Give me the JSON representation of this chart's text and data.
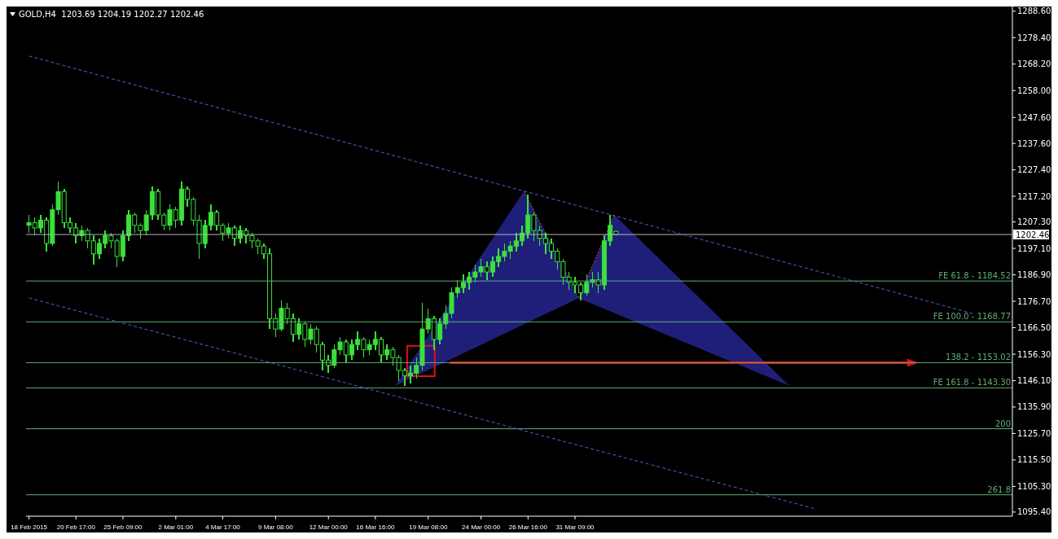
{
  "chart_data": {
    "type": "candlestick",
    "title": "GOLD,H4  1203.69 1204.19 1202.27 1202.46",
    "categories": [
      "18 Feb 2015",
      null,
      null,
      null,
      null,
      null,
      null,
      null,
      "20 Feb 17:00",
      null,
      null,
      null,
      null,
      null,
      null,
      null,
      "25 Feb 09:00",
      null,
      null,
      null,
      null,
      null,
      null,
      null,
      null,
      "2 Mar 01:00",
      null,
      null,
      null,
      null,
      null,
      null,
      null,
      "4 Mar 17:00",
      null,
      null,
      null,
      null,
      null,
      null,
      null,
      null,
      "9 Mar 08:00",
      null,
      null,
      null,
      null,
      null,
      null,
      null,
      null,
      "12 Mar 00:00",
      null,
      null,
      null,
      null,
      null,
      null,
      null,
      "16 Mar 16:00",
      null,
      null,
      null,
      null,
      null,
      null,
      null,
      null,
      "19 Mar 08:00",
      null,
      null,
      null,
      null,
      null,
      null,
      null,
      null,
      "24 Mar 00:00",
      null,
      null,
      null,
      null,
      null,
      null,
      null,
      "26 Mar 16:00",
      null,
      null,
      null,
      null,
      null,
      null,
      null,
      "31 Mar 09:00",
      null,
      null,
      null,
      null,
      null,
      null,
      null,
      null,
      null,
      null,
      null,
      null,
      null,
      null,
      null,
      null,
      null,
      null,
      null,
      null,
      null,
      null,
      null,
      null,
      null,
      null,
      null,
      null,
      null,
      null,
      null,
      null,
      null,
      null,
      null,
      null,
      null,
      null,
      null,
      null,
      null,
      null,
      null,
      null,
      null,
      null,
      null,
      null,
      null,
      null,
      null,
      null,
      null,
      null,
      null,
      null,
      null,
      null,
      null,
      null,
      null,
      null,
      null,
      null,
      null,
      null,
      null,
      null,
      null,
      null,
      null,
      null,
      null,
      null
    ],
    "ohlc": [
      [
        1206,
        1210,
        1203,
        1207
      ],
      [
        1207,
        1209,
        1202,
        1205
      ],
      [
        1205,
        1210,
        1203,
        1208
      ],
      [
        1208,
        1209,
        1196,
        1199
      ],
      [
        1199,
        1214,
        1198,
        1212
      ],
      [
        1212,
        1223,
        1210,
        1219
      ],
      [
        1219,
        1220,
        1205,
        1207
      ],
      [
        1207,
        1209,
        1203,
        1205
      ],
      [
        1205,
        1207,
        1199,
        1202
      ],
      [
        1202,
        1206,
        1200,
        1204
      ],
      [
        1204,
        1205,
        1197,
        1200
      ],
      [
        1200,
        1202,
        1191,
        1195
      ],
      [
        1195,
        1201,
        1193,
        1199
      ],
      [
        1199,
        1204,
        1197,
        1202
      ],
      [
        1202,
        1203,
        1197,
        1200
      ],
      [
        1200,
        1201,
        1190,
        1194
      ],
      [
        1194,
        1204,
        1192,
        1202
      ],
      [
        1202,
        1212,
        1200,
        1210
      ],
      [
        1210,
        1211,
        1203,
        1206
      ],
      [
        1206,
        1207,
        1201,
        1204
      ],
      [
        1204,
        1212,
        1202,
        1210
      ],
      [
        1210,
        1221,
        1208,
        1219
      ],
      [
        1219,
        1220,
        1208,
        1210
      ],
      [
        1210,
        1211,
        1204,
        1206
      ],
      [
        1206,
        1214,
        1204,
        1212
      ],
      [
        1212,
        1213,
        1205,
        1208
      ],
      [
        1208,
        1223,
        1206,
        1220
      ],
      [
        1220,
        1221,
        1213,
        1216
      ],
      [
        1216,
        1217,
        1206,
        1208
      ],
      [
        1208,
        1210,
        1193,
        1199
      ],
      [
        1199,
        1208,
        1197,
        1206
      ],
      [
        1206,
        1214,
        1204,
        1211
      ],
      [
        1211,
        1212,
        1204,
        1206
      ],
      [
        1206,
        1207,
        1200,
        1203
      ],
      [
        1203,
        1207,
        1201,
        1205
      ],
      [
        1205,
        1206,
        1198,
        1201
      ],
      [
        1201,
        1206,
        1199,
        1204
      ],
      [
        1204,
        1205,
        1199,
        1202
      ],
      [
        1202,
        1203,
        1197,
        1200
      ],
      [
        1200,
        1201,
        1195,
        1198
      ],
      [
        1198,
        1199,
        1193,
        1195
      ],
      [
        1195,
        1197,
        1166,
        1170
      ],
      [
        1170,
        1172,
        1163,
        1166
      ],
      [
        1166,
        1177,
        1165,
        1174
      ],
      [
        1174,
        1176,
        1168,
        1170
      ],
      [
        1170,
        1172,
        1161,
        1164
      ],
      [
        1164,
        1170,
        1162,
        1168
      ],
      [
        1168,
        1169,
        1159,
        1162
      ],
      [
        1162,
        1168,
        1160,
        1166
      ],
      [
        1166,
        1167,
        1157,
        1160
      ],
      [
        1160,
        1161,
        1150,
        1154
      ],
      [
        1154,
        1156,
        1149,
        1152
      ],
      [
        1152,
        1160,
        1151,
        1158
      ],
      [
        1158,
        1163,
        1156,
        1161
      ],
      [
        1161,
        1162,
        1153,
        1156
      ],
      [
        1156,
        1162,
        1154,
        1160
      ],
      [
        1160,
        1165,
        1158,
        1162
      ],
      [
        1162,
        1163,
        1155,
        1158
      ],
      [
        1158,
        1162,
        1156,
        1160
      ],
      [
        1160,
        1165,
        1158,
        1162
      ],
      [
        1162,
        1163,
        1153,
        1156
      ],
      [
        1156,
        1160,
        1154,
        1158
      ],
      [
        1158,
        1159,
        1152,
        1155
      ],
      [
        1155,
        1156,
        1146,
        1150
      ],
      [
        1150,
        1151,
        1144,
        1148
      ],
      [
        1148,
        1152,
        1145,
        1149
      ],
      [
        1149,
        1155,
        1147,
        1152
      ],
      [
        1152,
        1176,
        1150,
        1166
      ],
      [
        1166,
        1174,
        1164,
        1170
      ],
      [
        1170,
        1171,
        1158,
        1162
      ],
      [
        1162,
        1170,
        1160,
        1168
      ],
      [
        1168,
        1175,
        1166,
        1172
      ],
      [
        1172,
        1182,
        1170,
        1180
      ],
      [
        1180,
        1185,
        1178,
        1182
      ],
      [
        1182,
        1187,
        1180,
        1184
      ],
      [
        1184,
        1188,
        1181,
        1186
      ],
      [
        1186,
        1191,
        1184,
        1188
      ],
      [
        1188,
        1193,
        1186,
        1190
      ],
      [
        1190,
        1192,
        1185,
        1188
      ],
      [
        1188,
        1194,
        1186,
        1192
      ],
      [
        1192,
        1197,
        1190,
        1194
      ],
      [
        1194,
        1199,
        1192,
        1196
      ],
      [
        1196,
        1200,
        1193,
        1198
      ],
      [
        1198,
        1203,
        1196,
        1200
      ],
      [
        1200,
        1206,
        1198,
        1203
      ],
      [
        1203,
        1218,
        1201,
        1210
      ],
      [
        1210,
        1211,
        1200,
        1204
      ],
      [
        1204,
        1206,
        1198,
        1201
      ],
      [
        1201,
        1203,
        1195,
        1199
      ],
      [
        1199,
        1201,
        1193,
        1196
      ],
      [
        1196,
        1197,
        1189,
        1192
      ],
      [
        1192,
        1193,
        1183,
        1186
      ],
      [
        1186,
        1188,
        1181,
        1184
      ],
      [
        1184,
        1186,
        1180,
        1183
      ],
      [
        1183,
        1184,
        1177,
        1180
      ],
      [
        1180,
        1187,
        1179,
        1184
      ],
      [
        1184,
        1188,
        1182,
        1185
      ],
      [
        1185,
        1188,
        1180,
        1183
      ],
      [
        1183,
        1202,
        1181,
        1200
      ],
      [
        1200,
        1210,
        1198,
        1206
      ],
      [
        1203.69,
        1204.19,
        1202.27,
        1202.46
      ],
      null,
      null,
      null,
      null,
      null,
      null,
      null,
      null,
      null,
      null,
      null,
      null,
      null,
      null,
      null,
      null,
      null,
      null,
      null,
      null,
      null,
      null,
      null,
      null,
      null,
      null,
      null,
      null,
      null,
      null,
      null,
      null,
      null,
      null,
      null,
      null,
      null,
      null,
      null,
      null,
      null,
      null,
      null,
      null,
      null,
      null,
      null,
      null,
      null,
      null,
      null,
      null,
      null,
      null,
      null,
      null,
      null,
      null,
      null,
      null,
      null,
      null,
      null,
      null,
      null,
      null,
      null
    ],
    "color": "#3be03b",
    "series": [
      {
        "type": "line",
        "color": "#5c5cd6",
        "line_style": "dashed",
        "values": [
          1271.3,
          null,
          null,
          null,
          null,
          null,
          null,
          null,
          null,
          null,
          null,
          null,
          null,
          null,
          null,
          null,
          null,
          null,
          null,
          null,
          null,
          null,
          null,
          null,
          null,
          null,
          null,
          null,
          null,
          null,
          null,
          null,
          null,
          null,
          null,
          null,
          null,
          null,
          null,
          null,
          null,
          null,
          null,
          null,
          null,
          null,
          null,
          null,
          null,
          null,
          null,
          null,
          null,
          null,
          null,
          null,
          null,
          null,
          null,
          null,
          null,
          null,
          null,
          null,
          null,
          null,
          null,
          null,
          null,
          null,
          null,
          null,
          null,
          null,
          null,
          null,
          null,
          null,
          null,
          null,
          null,
          null,
          null,
          null,
          null,
          null,
          null,
          null,
          null,
          null,
          null,
          null,
          null,
          null,
          null,
          null,
          null,
          null,
          null,
          null,
          null,
          null,
          null,
          null,
          null,
          null,
          null,
          null,
          null,
          null,
          null,
          null,
          null,
          null,
          null,
          null,
          null,
          null,
          null,
          null,
          null,
          null,
          null,
          null,
          null,
          null,
          null,
          null,
          null,
          null,
          null,
          null,
          null,
          null,
          null,
          null,
          null,
          null,
          null,
          null,
          null,
          null,
          null,
          null,
          null,
          null,
          null,
          null,
          null,
          null,
          null,
          null,
          null,
          null,
          null,
          null,
          null,
          null,
          null,
          null,
          null,
          1171.8,
          null,
          null,
          null,
          null,
          null,
          null
        ]
      },
      {
        "type": "line",
        "color": "#5c5cd6",
        "line_style": "dashed",
        "values": [
          1178.0,
          null,
          null,
          null,
          null,
          null,
          null,
          null,
          null,
          null,
          null,
          null,
          null,
          null,
          null,
          null,
          null,
          null,
          null,
          null,
          null,
          null,
          null,
          null,
          null,
          null,
          null,
          null,
          null,
          null,
          null,
          null,
          null,
          null,
          null,
          null,
          null,
          null,
          null,
          null,
          null,
          null,
          null,
          null,
          null,
          null,
          null,
          null,
          null,
          null,
          null,
          null,
          null,
          null,
          null,
          null,
          null,
          null,
          null,
          null,
          null,
          null,
          null,
          null,
          null,
          null,
          null,
          null,
          null,
          null,
          null,
          null,
          null,
          null,
          null,
          null,
          null,
          null,
          null,
          null,
          null,
          null,
          null,
          null,
          null,
          null,
          null,
          null,
          null,
          null,
          null,
          null,
          null,
          null,
          null,
          null,
          null,
          null,
          null,
          null,
          null,
          null,
          null,
          null,
          null,
          null,
          null,
          null,
          null,
          null,
          null,
          null,
          null,
          null,
          null,
          null,
          null,
          null,
          null,
          null,
          null,
          null,
          null,
          null,
          null,
          null,
          null,
          null,
          null,
          null,
          null,
          null,
          null,
          null,
          1096.6,
          null,
          null,
          null,
          null,
          null,
          null,
          null,
          null,
          null,
          null,
          null,
          null,
          null,
          null,
          null,
          null,
          null,
          null,
          null,
          null,
          null,
          null,
          null,
          null,
          null,
          null,
          null,
          null,
          null,
          null,
          null,
          null,
          null
        ]
      }
    ],
    "ylim": [
      1093.8,
      1290.4
    ],
    "yticks": [
      {
        "value": 1288.6,
        "label": "1288.60"
      },
      {
        "value": 1278.4,
        "label": "1278.40"
      },
      {
        "value": 1268.2,
        "label": "1268.20"
      },
      {
        "value": 1258.0,
        "label": "1258.00"
      },
      {
        "value": 1247.6,
        "label": "1247.60"
      },
      {
        "value": 1237.6,
        "label": "1237.60"
      },
      {
        "value": 1227.4,
        "label": "1227.40"
      },
      {
        "value": 1217.2,
        "label": "1217.20"
      },
      {
        "value": 1207.3,
        "label": "1207.30"
      },
      {
        "value": 1197.1,
        "label": "1197.10"
      },
      {
        "value": 1186.9,
        "label": "1186.90"
      },
      {
        "value": 1176.7,
        "label": "1176.70"
      },
      {
        "value": 1166.5,
        "label": "1166.50"
      },
      {
        "value": 1156.3,
        "label": "1156.30"
      },
      {
        "value": 1146.1,
        "label": "1146.10"
      },
      {
        "value": 1135.9,
        "label": "1135.90"
      },
      {
        "value": 1125.7,
        "label": "1125.70"
      },
      {
        "value": 1115.5,
        "label": "1115.50"
      },
      {
        "value": 1105.3,
        "label": "1105.30"
      },
      {
        "value": 1095.4,
        "label": "1095.40"
      }
    ],
    "ref_lines": [
      {
        "axis": "y",
        "value": 1202.46,
        "label": "1202.46",
        "color": "#b4b4b4"
      },
      {
        "axis": "y",
        "value": 1184.52,
        "color": "#5fae76"
      },
      {
        "axis": "y",
        "value": 1168.77,
        "color": "#5fae76"
      },
      {
        "axis": "y",
        "value": 1153.02,
        "color": "#5fae76"
      },
      {
        "axis": "y",
        "value": 1143.3,
        "color": "#5fae76"
      },
      {
        "axis": "y",
        "value": 1127.54,
        "color": "#5fae76"
      },
      {
        "axis": "y",
        "value": 1102.06,
        "color": "#5fae76"
      }
    ],
    "annotations": [
      {
        "text": "FE 61.8 - 1184.52",
        "y": 1184.52
      },
      {
        "text": "FE 100.0 - 1168.77",
        "y": 1168.77
      },
      {
        "text": "138.2 - 1153.02",
        "y": 1153.02
      },
      {
        "text": "FE 161.8 - 1143.30",
        "y": 1143.3
      },
      {
        "text": "200",
        "y": 1127.54
      },
      {
        "text": "261.8",
        "y": 1102.06
      }
    ]
  }
}
